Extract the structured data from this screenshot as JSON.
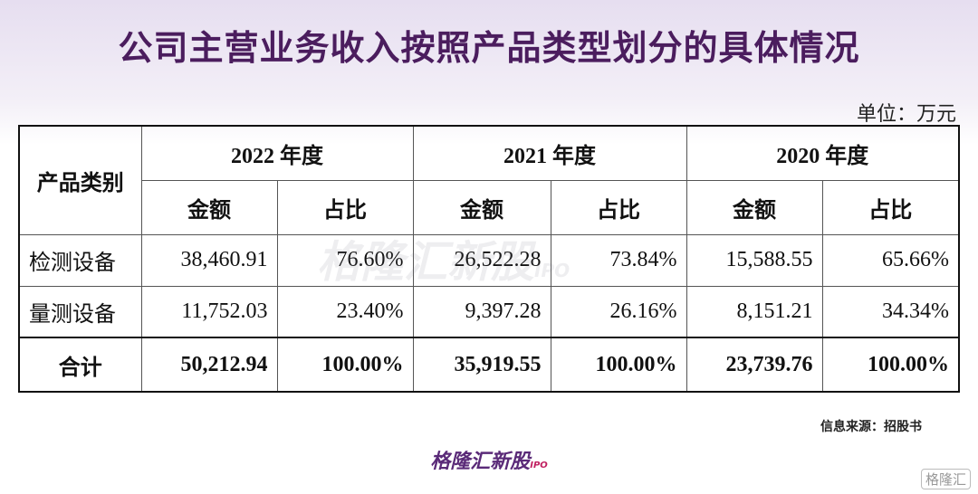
{
  "header": {
    "title": "公司主营业务收入按照产品类型划分的具体情况",
    "unit": "单位：万元"
  },
  "table": {
    "category_header": "产品类别",
    "years": [
      "2022 年度",
      "2021 年度",
      "2020 年度"
    ],
    "subheaders": [
      "金额",
      "占比",
      "金额",
      "占比",
      "金额",
      "占比"
    ],
    "rows": [
      [
        "检测设备",
        "38,460.91",
        "76.60%",
        "26,522.28",
        "73.84%",
        "15,588.55",
        "65.66%"
      ],
      [
        "量测设备",
        "11,752.03",
        "23.40%",
        "9,397.28",
        "26.16%",
        "8,151.21",
        "34.34%"
      ],
      [
        "合计",
        "50,212.94",
        "100.00%",
        "35,919.55",
        "100.00%",
        "23,739.76",
        "100.00%"
      ]
    ]
  },
  "footer": {
    "source": "信息来源：招股书",
    "logo": "格隆汇新股",
    "logo_suffix": "IPO",
    "badge": "格隆汇"
  },
  "watermark": {
    "text": "格隆汇新股",
    "suffix": "IPO"
  }
}
